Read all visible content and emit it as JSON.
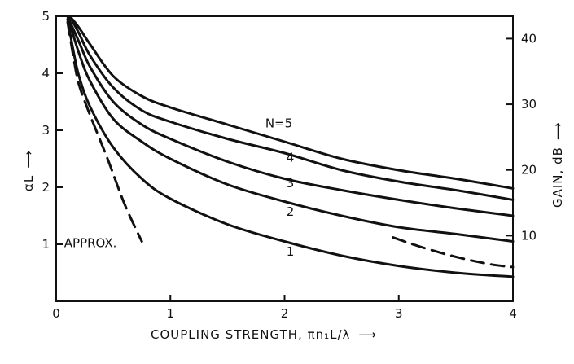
{
  "chart_data": {
    "type": "line",
    "xlabel": "COUPLING STRENGTH, πn₁L/λ",
    "xlabel_arrow": "⟶",
    "ylabel_left": "αL",
    "ylabel_left_arrow": "⟶",
    "ylabel_right": "GAIN, dB",
    "ylabel_right_arrow": "⟶",
    "xlim": [
      0,
      4
    ],
    "ylim_left": [
      0,
      5
    ],
    "ylim_right": [
      0,
      43.4
    ],
    "x_ticks": [
      0,
      1,
      2,
      3,
      4
    ],
    "y_left_ticks": [
      1,
      2,
      3,
      4,
      5
    ],
    "y_right_ticks": [
      10,
      20,
      30,
      40
    ],
    "grid": false,
    "series": [
      {
        "name": "N=5",
        "style": "solid",
        "label_at": [
          1.95,
          3.05
        ],
        "points": [
          [
            0.12,
            5.0
          ],
          [
            0.2,
            4.8
          ],
          [
            0.3,
            4.5
          ],
          [
            0.5,
            3.95
          ],
          [
            0.75,
            3.6
          ],
          [
            1.0,
            3.4
          ],
          [
            1.5,
            3.1
          ],
          [
            2.0,
            2.8
          ],
          [
            2.5,
            2.5
          ],
          [
            3.0,
            2.3
          ],
          [
            3.5,
            2.15
          ],
          [
            4.0,
            1.98
          ]
        ]
      },
      {
        "name": "4",
        "style": "solid",
        "label_at": [
          2.05,
          2.45
        ],
        "points": [
          [
            0.12,
            5.0
          ],
          [
            0.2,
            4.7
          ],
          [
            0.3,
            4.3
          ],
          [
            0.5,
            3.75
          ],
          [
            0.75,
            3.35
          ],
          [
            1.0,
            3.15
          ],
          [
            1.5,
            2.85
          ],
          [
            2.0,
            2.6
          ],
          [
            2.5,
            2.3
          ],
          [
            3.0,
            2.1
          ],
          [
            3.5,
            1.95
          ],
          [
            4.0,
            1.78
          ]
        ]
      },
      {
        "name": "3",
        "style": "solid",
        "label_at": [
          2.05,
          2.0
        ],
        "points": [
          [
            0.1,
            5.0
          ],
          [
            0.2,
            4.55
          ],
          [
            0.3,
            4.1
          ],
          [
            0.5,
            3.5
          ],
          [
            0.75,
            3.1
          ],
          [
            1.0,
            2.85
          ],
          [
            1.5,
            2.45
          ],
          [
            2.0,
            2.15
          ],
          [
            2.5,
            1.95
          ],
          [
            3.0,
            1.78
          ],
          [
            3.5,
            1.63
          ],
          [
            4.0,
            1.5
          ]
        ]
      },
      {
        "name": "2",
        "style": "solid",
        "label_at": [
          2.05,
          1.5
        ],
        "points": [
          [
            0.1,
            5.0
          ],
          [
            0.2,
            4.35
          ],
          [
            0.3,
            3.85
          ],
          [
            0.5,
            3.2
          ],
          [
            0.75,
            2.8
          ],
          [
            1.0,
            2.5
          ],
          [
            1.5,
            2.05
          ],
          [
            2.0,
            1.75
          ],
          [
            2.5,
            1.5
          ],
          [
            3.0,
            1.3
          ],
          [
            3.5,
            1.18
          ],
          [
            4.0,
            1.05
          ]
        ]
      },
      {
        "name": "1",
        "style": "solid",
        "label_at": [
          2.05,
          0.8
        ],
        "points": [
          [
            0.1,
            4.95
          ],
          [
            0.15,
            4.4
          ],
          [
            0.2,
            3.95
          ],
          [
            0.3,
            3.4
          ],
          [
            0.5,
            2.7
          ],
          [
            0.75,
            2.15
          ],
          [
            1.0,
            1.8
          ],
          [
            1.5,
            1.35
          ],
          [
            2.0,
            1.05
          ],
          [
            2.5,
            0.8
          ],
          [
            3.0,
            0.62
          ],
          [
            3.5,
            0.5
          ],
          [
            4.0,
            0.43
          ]
        ]
      },
      {
        "name": "APPROX.",
        "style": "dashed",
        "label_at": [
          0.3,
          0.95
        ],
        "points": [
          [
            0.1,
            4.9
          ],
          [
            0.15,
            4.3
          ],
          [
            0.2,
            3.8
          ],
          [
            0.3,
            3.25
          ],
          [
            0.45,
            2.5
          ],
          [
            0.6,
            1.7
          ],
          [
            0.75,
            1.05
          ]
        ]
      },
      {
        "name": "",
        "style": "dashed",
        "points": [
          [
            2.95,
            1.12
          ],
          [
            3.2,
            0.95
          ],
          [
            3.5,
            0.78
          ],
          [
            3.8,
            0.65
          ],
          [
            4.0,
            0.6
          ]
        ]
      }
    ]
  }
}
